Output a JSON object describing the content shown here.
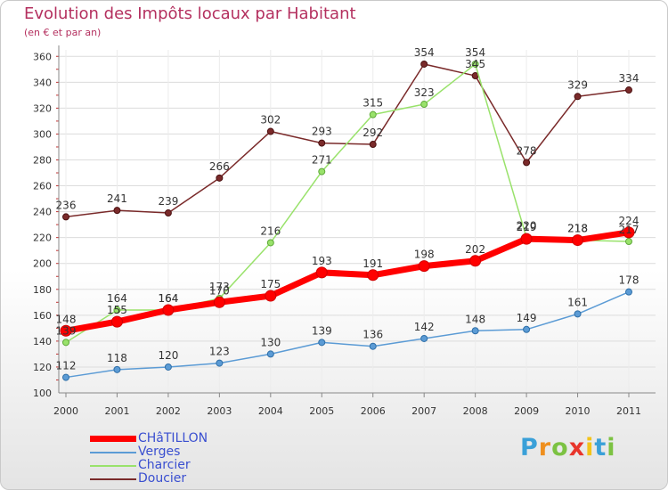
{
  "header": {
    "title": "Evolution des Impôts locaux par Habitant",
    "subtitle": "(en € et par an)"
  },
  "chart_data": {
    "type": "line",
    "categories": [
      "2000",
      "2001",
      "2002",
      "2003",
      "2004",
      "2005",
      "2006",
      "2007",
      "2008",
      "2009",
      "2010",
      "2011"
    ],
    "ylim": [
      100,
      365
    ],
    "yticks": [
      100,
      120,
      140,
      160,
      180,
      200,
      220,
      240,
      260,
      280,
      300,
      320,
      340,
      360
    ],
    "xlabel": "",
    "ylabel": "",
    "grid": true,
    "series": [
      {
        "name": "CHâTILLON",
        "color": "#ff0000",
        "values": [
          148,
          155,
          164,
          170,
          175,
          193,
          191,
          198,
          202,
          219,
          218,
          224
        ]
      },
      {
        "name": "Verges",
        "color": "#5b9bd5",
        "values": [
          112,
          118,
          120,
          123,
          130,
          139,
          136,
          142,
          148,
          149,
          161,
          178
        ]
      },
      {
        "name": "Charcier",
        "color": "#99e26b",
        "values": [
          139,
          164,
          164,
          173,
          216,
          271,
          315,
          323,
          354,
          220,
          218,
          217
        ]
      },
      {
        "name": "Doucier",
        "color": "#7a2a2a",
        "values": [
          236,
          241,
          239,
          266,
          302,
          293,
          292,
          354,
          345,
          278,
          329,
          334
        ]
      }
    ]
  },
  "legend": {
    "items": [
      {
        "label": "CHâTILLON",
        "color": "#ff0000"
      },
      {
        "label": "Verges",
        "color": "#5b9bd5"
      },
      {
        "label": "Charcier",
        "color": "#99e26b"
      },
      {
        "label": "Doucier",
        "color": "#7a2a2a"
      }
    ]
  },
  "brand": {
    "letters": [
      "P",
      "r",
      "o",
      "x",
      "i",
      "t",
      "i"
    ],
    "colors": [
      "#3aa0d8",
      "#ef8f1e",
      "#7cc242",
      "#e8352b",
      "#f3c31a",
      "#3aa0d8",
      "#7cc242"
    ]
  }
}
